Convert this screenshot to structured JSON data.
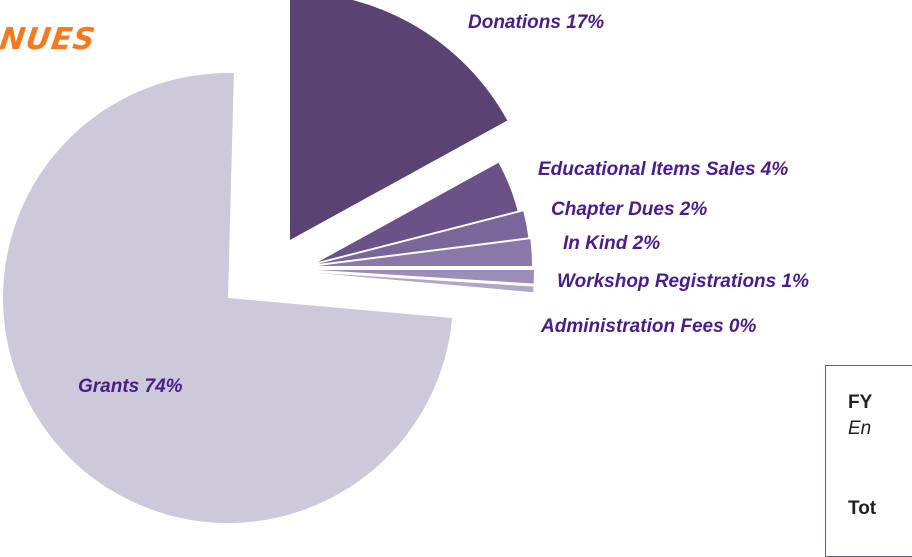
{
  "chart_data": {
    "type": "pie",
    "title": "NUES",
    "slices": [
      {
        "label": "Donations 17%",
        "value": 17,
        "color": "#5a4372"
      },
      {
        "label": "Educational Items Sales 4%",
        "value": 4,
        "color": "#6a5288"
      },
      {
        "label": "Chapter Dues 2%",
        "value": 2,
        "color": "#7a6698"
      },
      {
        "label": "In Kind 2%",
        "value": 2,
        "color": "#8a78a8"
      },
      {
        "label": "Workshop Registrations 1%",
        "value": 1,
        "color": "#9c8eb6"
      },
      {
        "label": "Administration Fees 0%",
        "value": 0,
        "color": "#b0a6c6"
      },
      {
        "label": "Grants 74%",
        "value": 74,
        "color": "#cdc8da"
      }
    ]
  },
  "info_box": {
    "line1": "FY",
    "line2": "En",
    "line3": "Tot"
  }
}
